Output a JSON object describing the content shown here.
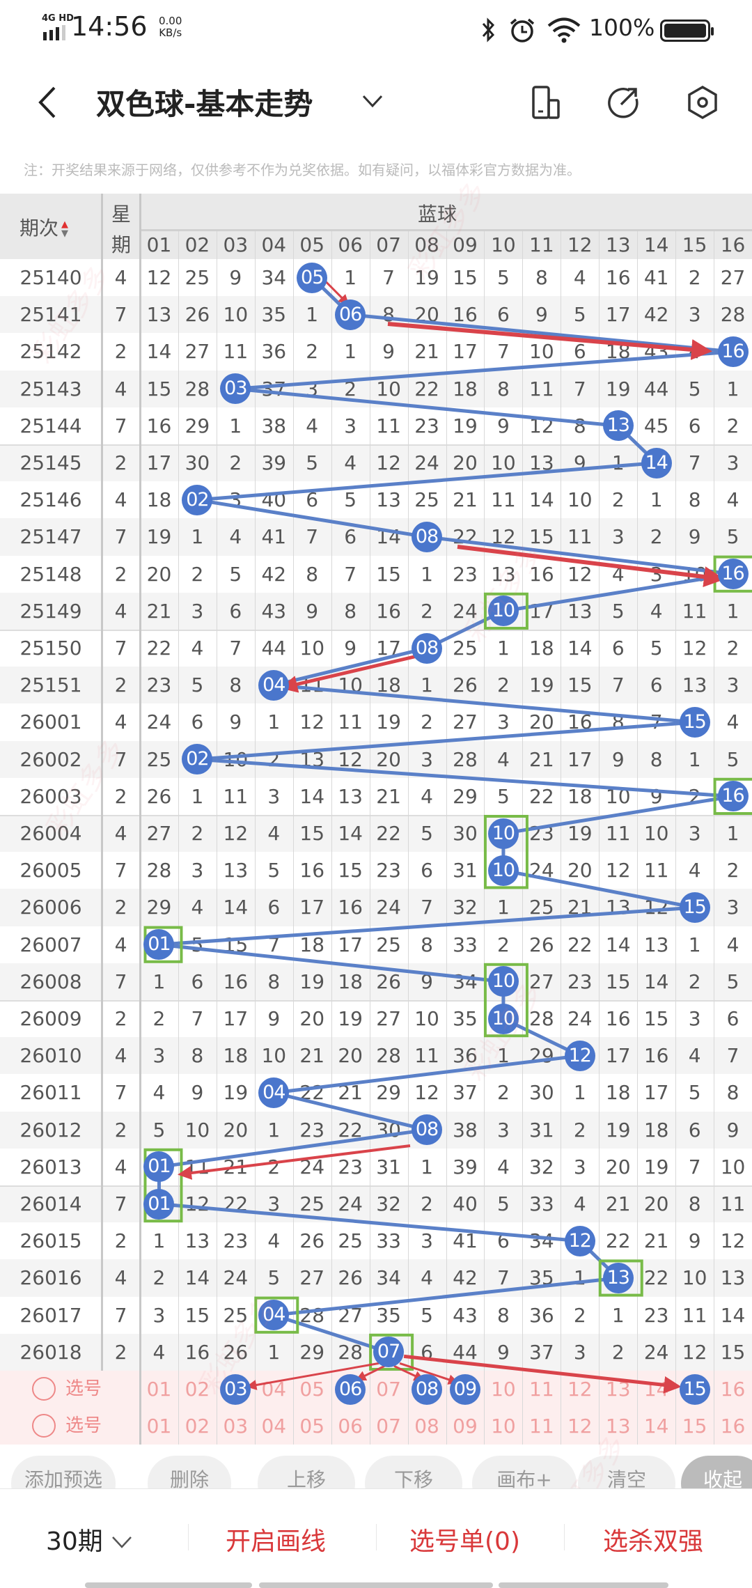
{
  "status_bar": {
    "network": "4G HD",
    "time": "14:56",
    "speed_value": "0.00",
    "speed_unit": "KB/s",
    "battery": "100%",
    "battery_level": 1.0,
    "icons": [
      "bluetooth-icon",
      "alarm-icon",
      "wifi-icon",
      "battery-icon"
    ]
  },
  "header": {
    "title": "双色球-基本走势",
    "icons": [
      "back-icon",
      "chevron-down-icon",
      "device-icon",
      "share-icon",
      "settings-icon"
    ]
  },
  "note": "注：开奖结果来源于网络，仅供参考不作为兑奖依据。如有疑问，以福体彩官方数据为准。",
  "watermark": "彩虹多多",
  "table": {
    "period_header": "期次",
    "weekday_header": "星期",
    "group_header": "蓝球",
    "columns": [
      "01",
      "02",
      "03",
      "04",
      "05",
      "06",
      "07",
      "08",
      "09",
      "10",
      "11",
      "12",
      "13",
      "14",
      "15",
      "16"
    ],
    "rows": [
      {
        "period": "25140",
        "weekday": "4",
        "blue": 5,
        "cells": [
          "12",
          "25",
          "9",
          "34",
          "05",
          "1",
          "7",
          "19",
          "15",
          "5",
          "8",
          "4",
          "16",
          "41",
          "2",
          "27"
        ]
      },
      {
        "period": "25141",
        "weekday": "7",
        "blue": 6,
        "cells": [
          "13",
          "26",
          "10",
          "35",
          "1",
          "06",
          "8",
          "20",
          "16",
          "6",
          "9",
          "5",
          "17",
          "42",
          "3",
          "28"
        ]
      },
      {
        "period": "25142",
        "weekday": "2",
        "blue": 16,
        "cells": [
          "14",
          "27",
          "11",
          "36",
          "2",
          "1",
          "9",
          "21",
          "17",
          "7",
          "10",
          "6",
          "18",
          "43",
          "4",
          "16"
        ]
      },
      {
        "period": "25143",
        "weekday": "4",
        "blue": 3,
        "cells": [
          "15",
          "28",
          "03",
          "37",
          "3",
          "2",
          "10",
          "22",
          "18",
          "8",
          "11",
          "7",
          "19",
          "44",
          "5",
          "1"
        ]
      },
      {
        "period": "25144",
        "weekday": "7",
        "blue": 13,
        "cells": [
          "16",
          "29",
          "1",
          "38",
          "4",
          "3",
          "11",
          "23",
          "19",
          "9",
          "12",
          "8",
          "13",
          "45",
          "6",
          "2"
        ]
      },
      {
        "period": "25145",
        "weekday": "2",
        "blue": 14,
        "cells": [
          "17",
          "30",
          "2",
          "39",
          "5",
          "4",
          "12",
          "24",
          "20",
          "10",
          "13",
          "9",
          "1",
          "14",
          "7",
          "3"
        ]
      },
      {
        "period": "25146",
        "weekday": "4",
        "blue": 2,
        "cells": [
          "18",
          "02",
          "3",
          "40",
          "6",
          "5",
          "13",
          "25",
          "21",
          "11",
          "14",
          "10",
          "2",
          "1",
          "8",
          "4"
        ]
      },
      {
        "period": "25147",
        "weekday": "7",
        "blue": 8,
        "cells": [
          "19",
          "1",
          "4",
          "41",
          "7",
          "6",
          "14",
          "08",
          "22",
          "12",
          "15",
          "11",
          "3",
          "2",
          "9",
          "5"
        ]
      },
      {
        "period": "25148",
        "weekday": "2",
        "blue": 16,
        "cells": [
          "20",
          "2",
          "5",
          "42",
          "8",
          "7",
          "15",
          "1",
          "23",
          "13",
          "16",
          "12",
          "4",
          "3",
          "10",
          "16"
        ]
      },
      {
        "period": "25149",
        "weekday": "4",
        "blue": 10,
        "cells": [
          "21",
          "3",
          "6",
          "43",
          "9",
          "8",
          "16",
          "2",
          "24",
          "10",
          "17",
          "13",
          "5",
          "4",
          "11",
          "1"
        ]
      },
      {
        "period": "25150",
        "weekday": "7",
        "blue": 8,
        "cells": [
          "22",
          "4",
          "7",
          "44",
          "10",
          "9",
          "17",
          "08",
          "25",
          "1",
          "18",
          "14",
          "6",
          "5",
          "12",
          "2"
        ]
      },
      {
        "period": "25151",
        "weekday": "2",
        "blue": 4,
        "cells": [
          "23",
          "5",
          "8",
          "04",
          "11",
          "10",
          "18",
          "1",
          "26",
          "2",
          "19",
          "15",
          "7",
          "6",
          "13",
          "3"
        ]
      },
      {
        "period": "26001",
        "weekday": "4",
        "blue": 15,
        "cells": [
          "24",
          "6",
          "9",
          "1",
          "12",
          "11",
          "19",
          "2",
          "27",
          "3",
          "20",
          "16",
          "8",
          "7",
          "15",
          "4"
        ]
      },
      {
        "period": "26002",
        "weekday": "7",
        "blue": 2,
        "cells": [
          "25",
          "02",
          "10",
          "2",
          "13",
          "12",
          "20",
          "3",
          "28",
          "4",
          "21",
          "17",
          "9",
          "8",
          "1",
          "5"
        ]
      },
      {
        "period": "26003",
        "weekday": "2",
        "blue": 16,
        "cells": [
          "26",
          "1",
          "11",
          "3",
          "14",
          "13",
          "21",
          "4",
          "29",
          "5",
          "22",
          "18",
          "10",
          "9",
          "2",
          "16"
        ]
      },
      {
        "period": "26004",
        "weekday": "4",
        "blue": 10,
        "cells": [
          "27",
          "2",
          "12",
          "4",
          "15",
          "14",
          "22",
          "5",
          "30",
          "10",
          "23",
          "19",
          "11",
          "10",
          "3",
          "1"
        ]
      },
      {
        "period": "26005",
        "weekday": "7",
        "blue": 10,
        "cells": [
          "28",
          "3",
          "13",
          "5",
          "16",
          "15",
          "23",
          "6",
          "31",
          "10",
          "24",
          "20",
          "12",
          "11",
          "4",
          "2"
        ]
      },
      {
        "period": "26006",
        "weekday": "2",
        "blue": 15,
        "cells": [
          "29",
          "4",
          "14",
          "6",
          "17",
          "16",
          "24",
          "7",
          "32",
          "1",
          "25",
          "21",
          "13",
          "12",
          "15",
          "3"
        ]
      },
      {
        "period": "26007",
        "weekday": "4",
        "blue": 1,
        "cells": [
          "01",
          "5",
          "15",
          "7",
          "18",
          "17",
          "25",
          "8",
          "33",
          "2",
          "26",
          "22",
          "14",
          "13",
          "1",
          "4"
        ]
      },
      {
        "period": "26008",
        "weekday": "7",
        "blue": 10,
        "cells": [
          "1",
          "6",
          "16",
          "8",
          "19",
          "18",
          "26",
          "9",
          "34",
          "10",
          "27",
          "23",
          "15",
          "14",
          "2",
          "5"
        ]
      },
      {
        "period": "26009",
        "weekday": "2",
        "blue": 10,
        "cells": [
          "2",
          "7",
          "17",
          "9",
          "20",
          "19",
          "27",
          "10",
          "35",
          "10",
          "28",
          "24",
          "16",
          "15",
          "3",
          "6"
        ]
      },
      {
        "period": "26010",
        "weekday": "4",
        "blue": 12,
        "cells": [
          "3",
          "8",
          "18",
          "10",
          "21",
          "20",
          "28",
          "11",
          "36",
          "1",
          "29",
          "12",
          "17",
          "16",
          "4",
          "7"
        ]
      },
      {
        "period": "26011",
        "weekday": "7",
        "blue": 4,
        "cells": [
          "4",
          "9",
          "19",
          "04",
          "22",
          "21",
          "29",
          "12",
          "37",
          "2",
          "30",
          "1",
          "18",
          "17",
          "5",
          "8"
        ]
      },
      {
        "period": "26012",
        "weekday": "2",
        "blue": 8,
        "cells": [
          "5",
          "10",
          "20",
          "1",
          "23",
          "22",
          "30",
          "08",
          "38",
          "3",
          "31",
          "2",
          "19",
          "18",
          "6",
          "9"
        ]
      },
      {
        "period": "26013",
        "weekday": "4",
        "blue": 1,
        "cells": [
          "01",
          "11",
          "21",
          "2",
          "24",
          "23",
          "31",
          "1",
          "39",
          "4",
          "32",
          "3",
          "20",
          "19",
          "7",
          "10"
        ]
      },
      {
        "period": "26014",
        "weekday": "7",
        "blue": 1,
        "cells": [
          "01",
          "12",
          "22",
          "3",
          "25",
          "24",
          "32",
          "2",
          "40",
          "5",
          "33",
          "4",
          "21",
          "20",
          "8",
          "11"
        ]
      },
      {
        "period": "26015",
        "weekday": "2",
        "blue": 12,
        "cells": [
          "1",
          "13",
          "23",
          "4",
          "26",
          "25",
          "33",
          "3",
          "41",
          "6",
          "34",
          "12",
          "22",
          "21",
          "9",
          "12"
        ]
      },
      {
        "period": "26016",
        "weekday": "4",
        "blue": 13,
        "cells": [
          "2",
          "14",
          "24",
          "5",
          "27",
          "26",
          "34",
          "4",
          "42",
          "7",
          "35",
          "1",
          "13",
          "22",
          "10",
          "13"
        ]
      },
      {
        "period": "26017",
        "weekday": "7",
        "blue": 4,
        "cells": [
          "3",
          "15",
          "25",
          "04",
          "28",
          "27",
          "35",
          "5",
          "43",
          "8",
          "36",
          "2",
          "1",
          "23",
          "11",
          "14"
        ]
      },
      {
        "period": "26018",
        "weekday": "2",
        "blue": 7,
        "cells": [
          "4",
          "16",
          "26",
          "1",
          "29",
          "28",
          "07",
          "6",
          "44",
          "9",
          "37",
          "3",
          "2",
          "24",
          "12",
          "15"
        ]
      }
    ],
    "select_rows": [
      {
        "label": "选号",
        "selected": [
          "03",
          "06",
          "08",
          "09",
          "15"
        ]
      },
      {
        "label": "选号",
        "selected": []
      }
    ],
    "colors": {
      "ball": "#4a76cc",
      "trend_line": "#5a80c8",
      "arrow": "#d9434a",
      "repeat_box": "#78bb48",
      "select_bg": "#fdeeee"
    }
  },
  "toolbar": [
    "添加预选",
    "删除",
    "上移",
    "下移",
    "画布+",
    "清空",
    "收起"
  ],
  "bottom_bar": {
    "period_select": "30期",
    "draw_line": "开启画线",
    "pick_list": "选号单(0)",
    "kill_pick": "选杀双强"
  }
}
